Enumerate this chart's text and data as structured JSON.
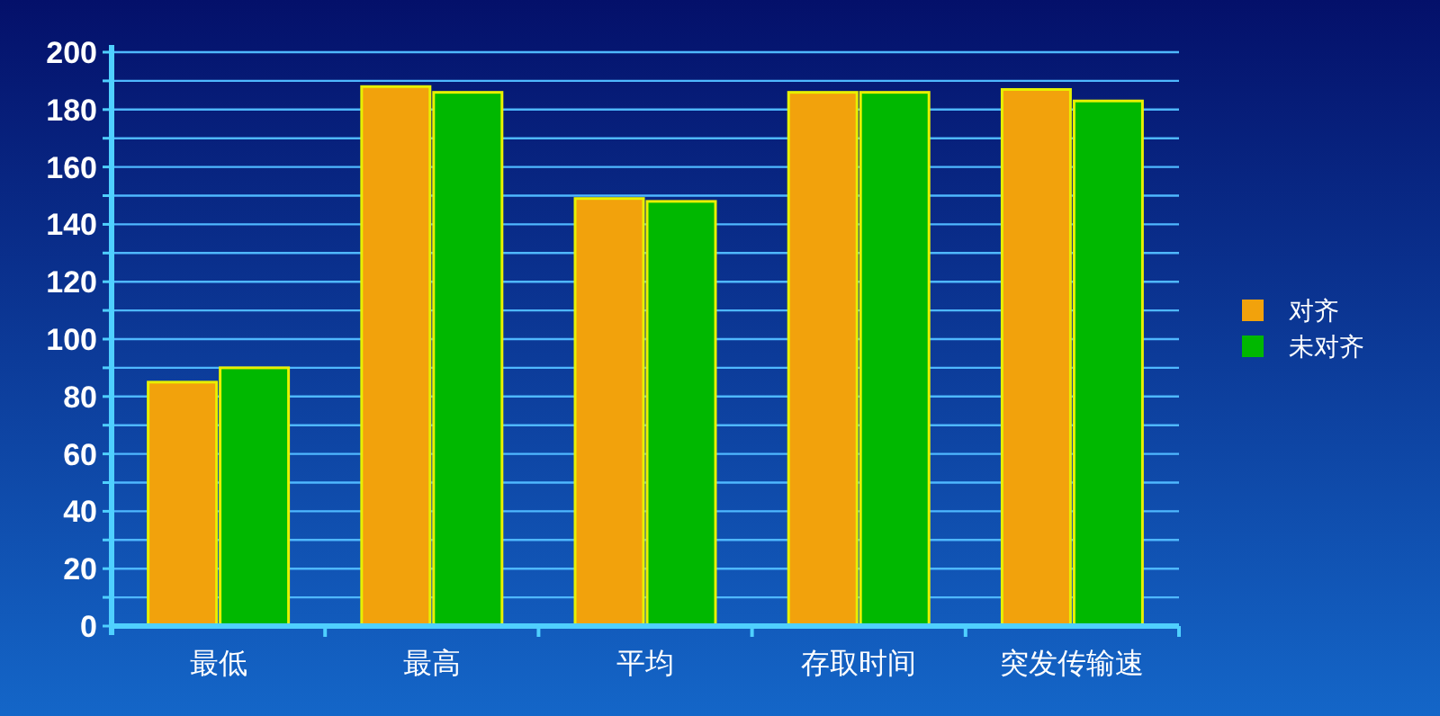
{
  "chart_data": {
    "type": "bar",
    "categories": [
      "最低",
      "最高",
      "平均",
      "存取时间",
      "突发传输速"
    ],
    "series": [
      {
        "name": "对齐",
        "color": "#f2a20c",
        "values": [
          85,
          188,
          149,
          186,
          187
        ]
      },
      {
        "name": "未对齐",
        "color": "#00b800",
        "values": [
          90,
          186,
          148,
          186,
          183
        ]
      }
    ],
    "ylim": [
      0,
      200
    ],
    "yticks": [
      0,
      {
        "value": 10,
        "label": null
      },
      20,
      {
        "value": 30,
        "label": null
      },
      40,
      {
        "value": 50,
        "label": null
      },
      60,
      {
        "value": 70,
        "label": null
      },
      80,
      {
        "value": 90,
        "label": null
      },
      100,
      {
        "value": 110,
        "label": null
      },
      120,
      {
        "value": 130,
        "label": null
      },
      140,
      {
        "value": 150,
        "label": null
      },
      160,
      {
        "value": 170,
        "label": null
      },
      180,
      {
        "value": 190,
        "label": null
      },
      200
    ],
    "grid": "y",
    "legend": "right"
  }
}
